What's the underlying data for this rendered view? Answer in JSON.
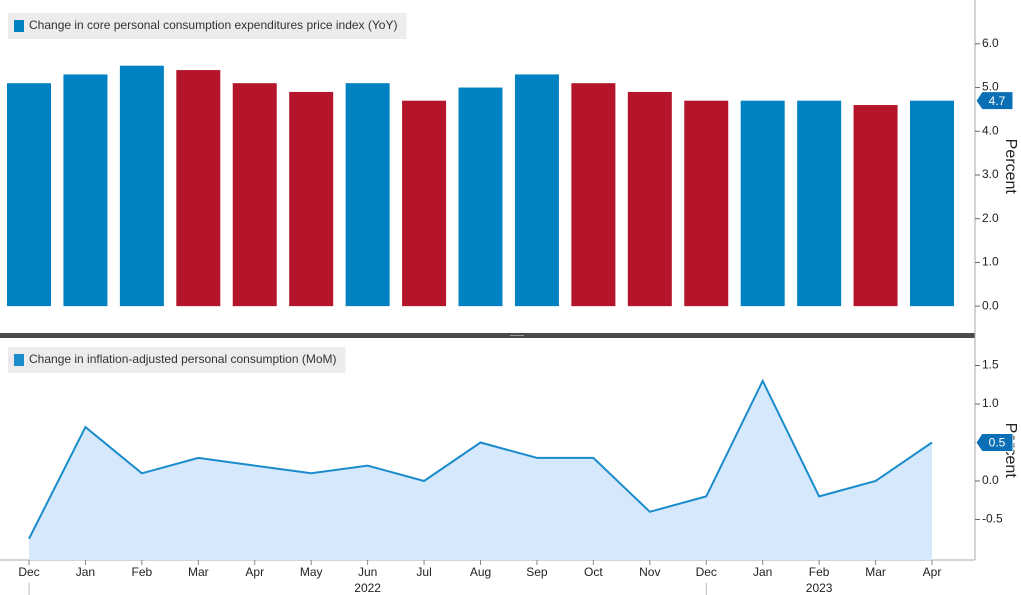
{
  "chart_data": [
    {
      "type": "bar",
      "y_label": "Percent",
      "series": [
        {
          "name": "Change in core personal consumption expenditures price index (YoY)",
          "color": "#0081c2",
          "values": [
            5.1,
            5.3,
            5.5,
            5.4,
            5.1,
            4.9,
            5.1,
            4.7,
            5.0,
            5.3,
            5.1,
            4.9,
            4.7,
            4.7,
            4.7,
            4.6,
            4.7
          ]
        }
      ],
      "colors": [
        "#0081c2",
        "#0081c2",
        "#0081c2",
        "#b5152b",
        "#b5152b",
        "#b5152b",
        "#0081c2",
        "#b5152b",
        "#0081c2",
        "#0081c2",
        "#b5152b",
        "#b5152b",
        "#b5152b",
        "#0081c2",
        "#0081c2",
        "#b5152b",
        "#0081c2"
      ],
      "ylim": [
        -0.5,
        6.9
      ],
      "yticks": [
        {
          "value": 0,
          "label": "0.0"
        },
        {
          "value": 1,
          "label": "1.0"
        },
        {
          "value": 2,
          "label": "2.0"
        },
        {
          "value": 3,
          "label": "3.0"
        },
        {
          "value": 4,
          "label": "4.0"
        },
        {
          "value": 5,
          "label": "5.0"
        },
        {
          "value": 6,
          "label": "6.0"
        }
      ],
      "grid": false
    },
    {
      "type": "area",
      "y_label": "Percent",
      "categories": [
        "Dec",
        "Jan",
        "Feb",
        "Mar",
        "Apr",
        "May",
        "Jun",
        "Jul",
        "Aug",
        "Sep",
        "Oct",
        "Nov",
        "Dec",
        "Jan",
        "Feb",
        "Mar",
        "Apr"
      ],
      "year_labels": [
        "2022",
        "2023"
      ],
      "series": [
        {
          "name": "Change in inflation-adjusted personal consumption (MoM)",
          "color": "#1a8ccc",
          "fill": "#d6e8fb",
          "values": [
            -0.75,
            0.7,
            0.1,
            0.3,
            0.2,
            0.1,
            0.2,
            0.0,
            0.5,
            0.3,
            0.3,
            -0.4,
            -0.2,
            1.3,
            -0.2,
            0.0,
            0.5
          ]
        }
      ],
      "ylim": [
        -1.0,
        1.8
      ],
      "yticks": [
        -0.5,
        {
          "value": 0,
          "label": "0.0"
        },
        0.5,
        {
          "value": 1,
          "label": "1.0"
        },
        1.5
      ],
      "grid": false
    }
  ]
}
